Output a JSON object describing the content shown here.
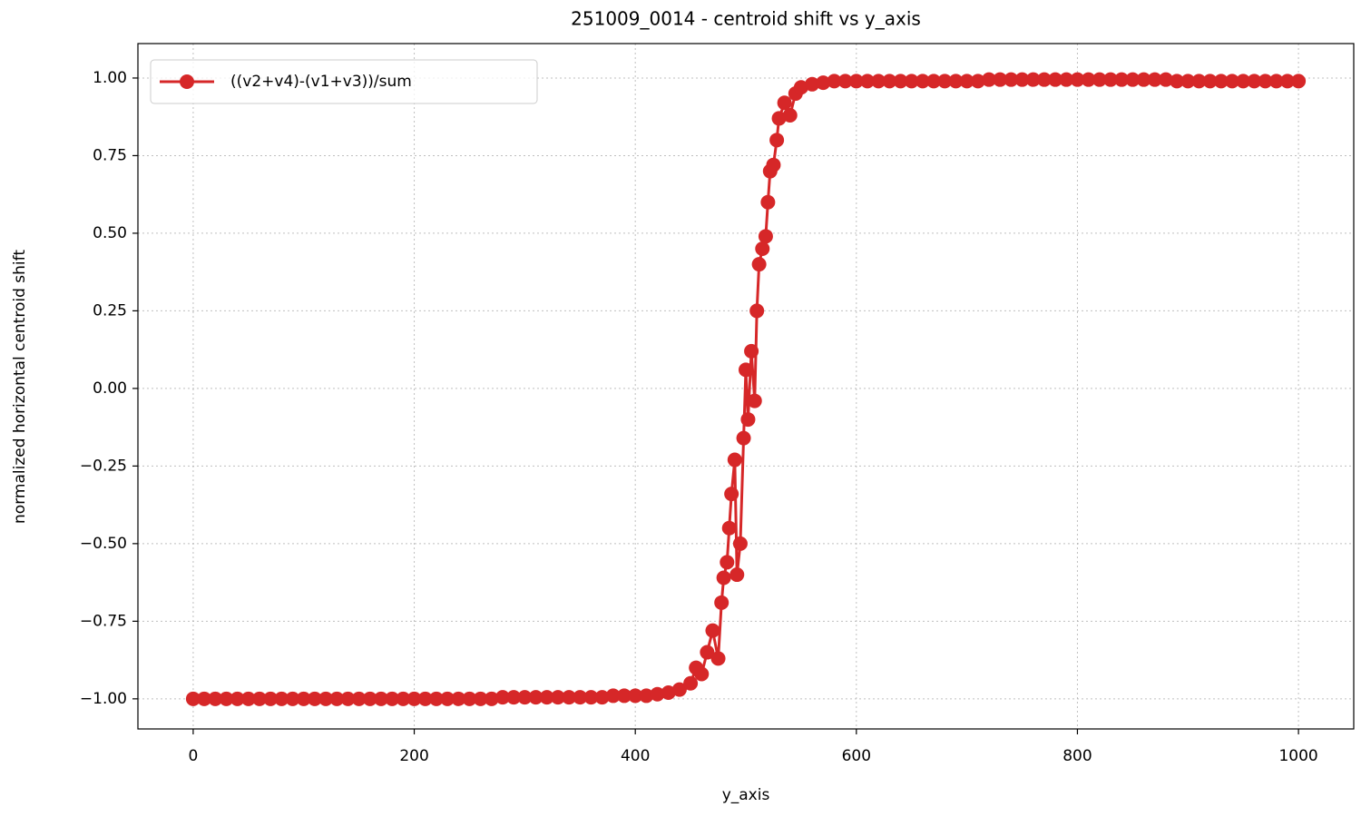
{
  "chart_data": {
    "type": "line",
    "title": "251009_0014 - centroid shift vs y_axis",
    "xlabel": "y_axis",
    "ylabel": "normalized horizontal centroid shift",
    "x": [
      0,
      10,
      20,
      30,
      40,
      50,
      60,
      70,
      80,
      90,
      100,
      110,
      120,
      130,
      140,
      150,
      160,
      170,
      180,
      190,
      200,
      210,
      220,
      230,
      240,
      250,
      260,
      270,
      280,
      290,
      300,
      310,
      320,
      330,
      340,
      350,
      360,
      370,
      380,
      390,
      400,
      410,
      420,
      430,
      440,
      450,
      455,
      460,
      465,
      470,
      475,
      478,
      480,
      483,
      485,
      487,
      490,
      492,
      495,
      498,
      500,
      502,
      505,
      508,
      510,
      512,
      515,
      518,
      520,
      522,
      525,
      528,
      530,
      535,
      540,
      545,
      550,
      560,
      570,
      580,
      590,
      600,
      610,
      620,
      630,
      640,
      650,
      660,
      670,
      680,
      690,
      700,
      710,
      720,
      730,
      740,
      750,
      760,
      770,
      780,
      790,
      800,
      810,
      820,
      830,
      840,
      850,
      860,
      870,
      880,
      890,
      900,
      910,
      920,
      930,
      940,
      950,
      960,
      970,
      980,
      990,
      1000
    ],
    "series": [
      {
        "name": "((v2+v4)-(v1+v3))/sum",
        "color": "#d62728",
        "values": [
          -1.0,
          -1.0,
          -1.0,
          -1.0,
          -1.0,
          -1.0,
          -1.0,
          -1.0,
          -1.0,
          -1.0,
          -1.0,
          -1.0,
          -1.0,
          -1.0,
          -1.0,
          -1.0,
          -1.0,
          -1.0,
          -1.0,
          -1.0,
          -1.0,
          -1.0,
          -1.0,
          -1.0,
          -1.0,
          -1.0,
          -1.0,
          -1.0,
          -0.995,
          -0.995,
          -0.995,
          -0.995,
          -0.995,
          -0.995,
          -0.995,
          -0.995,
          -0.995,
          -0.995,
          -0.99,
          -0.99,
          -0.99,
          -0.99,
          -0.985,
          -0.98,
          -0.97,
          -0.95,
          -0.9,
          -0.92,
          -0.85,
          -0.78,
          -0.87,
          -0.69,
          -0.61,
          -0.56,
          -0.45,
          -0.34,
          -0.23,
          -0.6,
          -0.5,
          -0.16,
          0.06,
          -0.1,
          0.12,
          -0.04,
          0.25,
          0.4,
          0.45,
          0.49,
          0.6,
          0.7,
          0.72,
          0.8,
          0.87,
          0.92,
          0.88,
          0.95,
          0.97,
          0.98,
          0.985,
          0.99,
          0.99,
          0.99,
          0.99,
          0.99,
          0.99,
          0.99,
          0.99,
          0.99,
          0.99,
          0.99,
          0.99,
          0.99,
          0.99,
          0.995,
          0.995,
          0.995,
          0.995,
          0.995,
          0.995,
          0.995,
          0.995,
          0.995,
          0.995,
          0.995,
          0.995,
          0.995,
          0.995,
          0.995,
          0.995,
          0.995,
          0.99,
          0.99,
          0.99,
          0.99,
          0.99,
          0.99,
          0.99,
          0.99,
          0.99,
          0.99,
          0.99,
          0.99
        ]
      }
    ],
    "xlim": [
      -50,
      1050
    ],
    "ylim": [
      -1.097,
      1.111
    ],
    "xticks": [
      0,
      200,
      400,
      600,
      800,
      1000
    ],
    "yticks": [
      {
        "value": 1,
        "label": "1.00"
      },
      {
        "value": 0.75,
        "label": "0.75"
      },
      {
        "value": 0.5,
        "label": "0.50"
      },
      {
        "value": 0.25,
        "label": "0.25"
      },
      {
        "value": 0,
        "label": "0.00"
      },
      {
        "value": -0.25,
        "label": "−0.25"
      },
      {
        "value": -0.5,
        "label": "−0.50"
      },
      {
        "value": -0.75,
        "label": "−0.75"
      },
      {
        "value": -1,
        "label": "−1.00"
      }
    ],
    "grid": true,
    "legend": "upper left"
  }
}
